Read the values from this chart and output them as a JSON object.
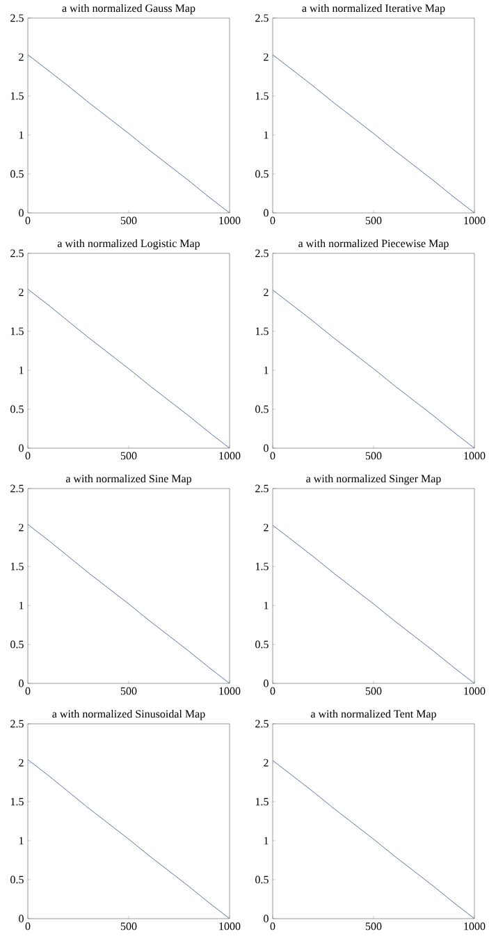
{
  "chart_data": [
    {
      "type": "line",
      "title": "a with normalized Gauss Map",
      "x": [
        0,
        100,
        200,
        300,
        400,
        500,
        600,
        700,
        800,
        900,
        1000
      ],
      "values": [
        2.03,
        1.83,
        1.63,
        1.42,
        1.22,
        1.02,
        0.81,
        0.61,
        0.41,
        0.2,
        0
      ],
      "color": "#34508c",
      "xlim": [
        0,
        1000
      ],
      "ylim": [
        0,
        2.5
      ],
      "xticks": [
        0,
        500,
        1000
      ],
      "yticks": [
        0,
        0.5,
        1,
        1.5,
        2,
        2.5
      ],
      "grid": false
    },
    {
      "type": "line",
      "title": "a with normalized Iterative Map",
      "x": [
        0,
        100,
        200,
        300,
        400,
        500,
        600,
        700,
        800,
        900,
        1000
      ],
      "values": [
        2.03,
        1.83,
        1.63,
        1.42,
        1.22,
        1.02,
        0.81,
        0.61,
        0.41,
        0.2,
        0
      ],
      "color": "#34508c",
      "xlim": [
        0,
        1000
      ],
      "ylim": [
        0,
        2.5
      ],
      "xticks": [
        0,
        500,
        1000
      ],
      "yticks": [
        0,
        0.5,
        1,
        1.5,
        2,
        2.5
      ],
      "grid": false
    },
    {
      "type": "line",
      "title": "a with normalized Logistic Map",
      "x": [
        0,
        100,
        200,
        300,
        400,
        500,
        600,
        700,
        800,
        900,
        1000
      ],
      "values": [
        2.04,
        1.84,
        1.63,
        1.42,
        1.22,
        1.02,
        0.81,
        0.61,
        0.41,
        0.2,
        0
      ],
      "color": "#34508c",
      "xlim": [
        0,
        1000
      ],
      "ylim": [
        0,
        2.5
      ],
      "xticks": [
        0,
        500,
        1000
      ],
      "yticks": [
        0,
        0.5,
        1,
        1.5,
        2,
        2.5
      ],
      "grid": false
    },
    {
      "type": "line",
      "title": "a with normalized Piecewise Map",
      "x": [
        0,
        100,
        200,
        300,
        400,
        500,
        600,
        700,
        800,
        900,
        1000
      ],
      "values": [
        2.03,
        1.83,
        1.63,
        1.42,
        1.22,
        1.02,
        0.81,
        0.61,
        0.41,
        0.2,
        0
      ],
      "color": "#34508c",
      "xlim": [
        0,
        1000
      ],
      "ylim": [
        0,
        2.5
      ],
      "xticks": [
        0,
        500,
        1000
      ],
      "yticks": [
        0,
        0.5,
        1,
        1.5,
        2,
        2.5
      ],
      "grid": false
    },
    {
      "type": "line",
      "title": "a with normalized Sine Map",
      "x": [
        0,
        100,
        200,
        300,
        400,
        500,
        600,
        700,
        800,
        900,
        1000
      ],
      "values": [
        2.04,
        1.84,
        1.63,
        1.42,
        1.22,
        1.02,
        0.81,
        0.61,
        0.41,
        0.2,
        0
      ],
      "color": "#34508c",
      "xlim": [
        0,
        1000
      ],
      "ylim": [
        0,
        2.5
      ],
      "xticks": [
        0,
        500,
        1000
      ],
      "yticks": [
        0,
        0.5,
        1,
        1.5,
        2,
        2.5
      ],
      "grid": false
    },
    {
      "type": "line",
      "title": "a with normalized Singer Map",
      "x": [
        0,
        100,
        200,
        300,
        400,
        500,
        600,
        700,
        800,
        900,
        1000
      ],
      "values": [
        2.03,
        1.83,
        1.63,
        1.42,
        1.22,
        1.02,
        0.81,
        0.61,
        0.41,
        0.2,
        0
      ],
      "color": "#34508c",
      "xlim": [
        0,
        1000
      ],
      "ylim": [
        0,
        2.5
      ],
      "xticks": [
        0,
        500,
        1000
      ],
      "yticks": [
        0,
        0.5,
        1,
        1.5,
        2,
        2.5
      ],
      "grid": false
    },
    {
      "type": "line",
      "title": "a with normalized Sinusoidal Map",
      "x": [
        0,
        100,
        200,
        300,
        400,
        500,
        600,
        700,
        800,
        900,
        1000
      ],
      "values": [
        2.04,
        1.84,
        1.63,
        1.42,
        1.22,
        1.02,
        0.81,
        0.61,
        0.41,
        0.2,
        0
      ],
      "color": "#34508c",
      "xlim": [
        0,
        1000
      ],
      "ylim": [
        0,
        2.5
      ],
      "xticks": [
        0,
        500,
        1000
      ],
      "yticks": [
        0,
        0.5,
        1,
        1.5,
        2,
        2.5
      ],
      "grid": false
    },
    {
      "type": "line",
      "title": "a with normalized Tent Map",
      "x": [
        0,
        100,
        200,
        300,
        400,
        500,
        600,
        700,
        800,
        900,
        1000
      ],
      "values": [
        2.03,
        1.83,
        1.63,
        1.42,
        1.22,
        1.02,
        0.81,
        0.61,
        0.41,
        0.2,
        0
      ],
      "color": "#34508c",
      "xlim": [
        0,
        1000
      ],
      "ylim": [
        0,
        2.5
      ],
      "xticks": [
        0,
        500,
        1000
      ],
      "yticks": [
        0,
        0.5,
        1,
        1.5,
        2,
        2.5
      ],
      "grid": false
    }
  ]
}
